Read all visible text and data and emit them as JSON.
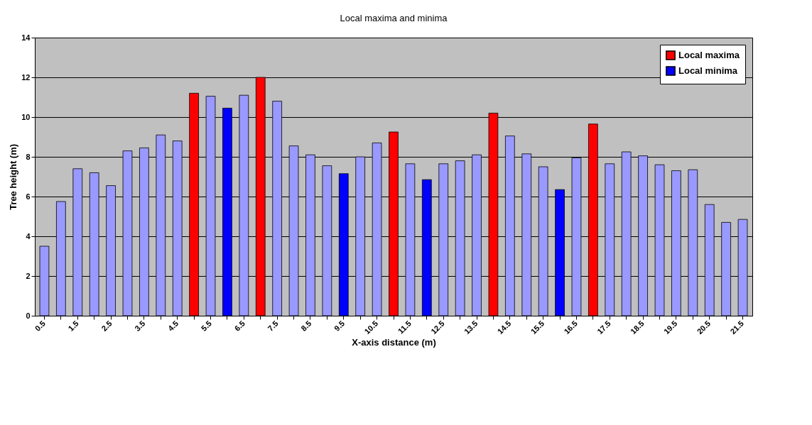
{
  "chart_data": {
    "type": "bar",
    "title": "Local maxima and minima",
    "xlabel": "X-axis distance (m)",
    "ylabel": "Tree height (m)",
    "categories": [
      "0.5",
      null,
      "1.5",
      null,
      "2.5",
      null,
      "3.5",
      null,
      "4.5",
      null,
      "5.5",
      null,
      "6.5",
      null,
      "7.5",
      null,
      "8.5",
      null,
      "9.5",
      null,
      "10.5",
      null,
      "11.5",
      null,
      "12.5",
      null,
      "13.5",
      null,
      "14.5",
      null,
      "15.5",
      null,
      "16.5",
      null,
      "17.5",
      null,
      "18.5",
      null,
      "19.5",
      null,
      "20.5",
      null,
      "21.5"
    ],
    "series": [
      {
        "color": "#9999ff",
        "values": [
          3.5,
          5.75,
          7.4,
          7.2,
          6.55,
          8.3,
          8.45,
          9.1,
          8.8,
          null,
          11.05,
          null,
          11.1,
          null,
          10.8,
          8.55,
          8.1,
          7.55,
          null,
          8.0,
          8.7,
          null,
          7.65,
          null,
          7.65,
          7.8,
          8.1,
          null,
          9.05,
          8.15,
          7.5,
          null,
          7.95,
          null,
          7.65,
          8.25,
          8.05,
          7.6,
          7.3,
          7.35,
          5.6,
          4.7,
          4.85
        ]
      },
      {
        "name": "Local maxima",
        "color": "#ff0000",
        "values": [
          null,
          null,
          null,
          null,
          null,
          null,
          null,
          null,
          null,
          11.2,
          null,
          null,
          null,
          12.0,
          null,
          null,
          null,
          null,
          null,
          null,
          null,
          9.25,
          null,
          null,
          null,
          null,
          null,
          10.2,
          null,
          null,
          null,
          null,
          null,
          9.65,
          null,
          null,
          null,
          null,
          null,
          null,
          null,
          null,
          null
        ]
      },
      {
        "name": "Local minima",
        "color": "#0000ff",
        "values": [
          null,
          null,
          null,
          null,
          null,
          null,
          null,
          null,
          null,
          null,
          null,
          10.45,
          null,
          null,
          null,
          null,
          null,
          null,
          7.15,
          null,
          null,
          null,
          null,
          6.85,
          null,
          null,
          null,
          null,
          null,
          null,
          null,
          6.35,
          null,
          null,
          null,
          null,
          null,
          null,
          null,
          null,
          null,
          null,
          null
        ]
      }
    ],
    "ylim": [
      0,
      14
    ],
    "yticks": [
      0,
      2,
      4,
      6,
      8,
      10,
      12,
      14
    ],
    "grid": "y",
    "legend": "top right"
  }
}
